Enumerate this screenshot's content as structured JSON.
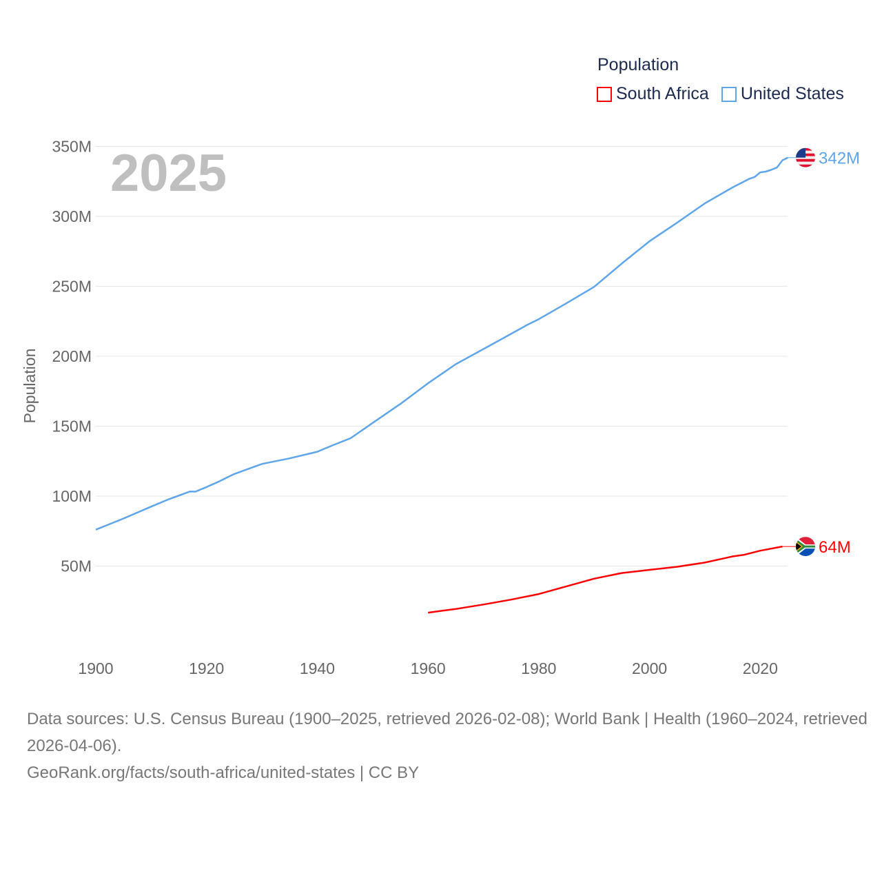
{
  "legend": {
    "title": "Population",
    "items": [
      {
        "name": "South Africa",
        "color": "#ff0000"
      },
      {
        "name": "United States",
        "color": "#5ea5ea"
      }
    ]
  },
  "year_label": "2025",
  "footer": {
    "sources": "Data sources: U.S. Census Bureau (1900–2025, retrieved 2026-02-08); World Bank | Health (1960–2024, retrieved 2026-04-06).",
    "link": "GeoRank.org/facts/south-africa/united-states | CC BY"
  },
  "chart_data": {
    "type": "line",
    "title": "Population",
    "xlabel": "",
    "ylabel": "Population",
    "xlim": [
      1900,
      2025
    ],
    "ylim": [
      0,
      350
    ],
    "x_ticks": [
      "1900",
      "1920",
      "1940",
      "1960",
      "1980",
      "2000",
      "2020"
    ],
    "y_ticks": [
      "50M",
      "100M",
      "150M",
      "200M",
      "250M",
      "300M",
      "350M"
    ],
    "grid": true,
    "legend_position": "top-right",
    "series": [
      {
        "name": "United States",
        "color": "#5ea5ea",
        "end_label": "342M",
        "flag": "us-flag",
        "x": [
          1900,
          1905,
          1910,
          1913,
          1917,
          1918,
          1920,
          1922,
          1925,
          1930,
          1935,
          1940,
          1943,
          1946,
          1950,
          1955,
          1960,
          1965,
          1970,
          1975,
          1978,
          1980,
          1985,
          1990,
          1995,
          2000,
          2005,
          2010,
          2015,
          2018,
          2019,
          2020,
          2021,
          2022,
          2023,
          2024,
          2025
        ],
        "y": [
          76,
          84,
          92.5,
          97.5,
          103.3,
          103.2,
          106.5,
          110,
          115.8,
          123,
          127,
          131.7,
          136.7,
          141.4,
          152.3,
          165.9,
          180.7,
          194.3,
          205.1,
          216,
          222.6,
          226.5,
          237.9,
          249.6,
          266.3,
          282.2,
          295.5,
          309.3,
          320.7,
          326.8,
          328.2,
          331.5,
          332,
          333.3,
          334.9,
          340.1,
          342
        ]
      },
      {
        "name": "South Africa",
        "color": "#ff0000",
        "end_label": "64M",
        "flag": "za-flag",
        "x": [
          1960,
          1965,
          1970,
          1975,
          1980,
          1985,
          1990,
          1995,
          2000,
          2005,
          2010,
          2014,
          2015,
          2017,
          2020,
          2024
        ],
        "y": [
          16.7,
          19.3,
          22.5,
          26,
          30,
          35.5,
          41,
          45,
          47.3,
          49.5,
          52.5,
          56,
          56.9,
          58,
          61,
          64
        ]
      }
    ]
  }
}
